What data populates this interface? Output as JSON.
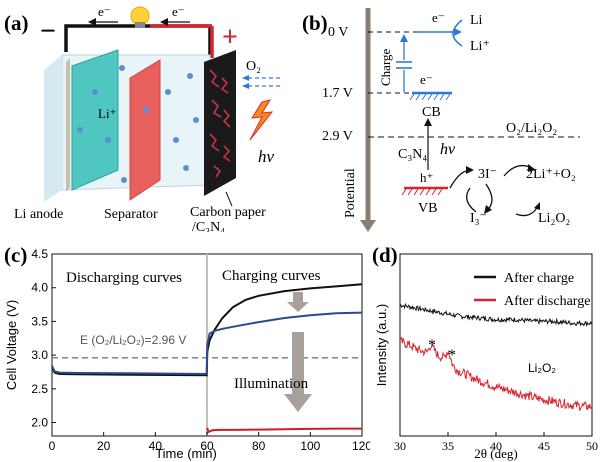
{
  "panels": {
    "a": {
      "label": "(a)",
      "electron_left": "e⁻",
      "electron_right": "e⁻",
      "minus": "−",
      "plus": "+",
      "o2": "O₂",
      "li_ion": "Li⁺",
      "hv": "hν",
      "li_anode": "Li anode",
      "separator": "Separator",
      "carbon_paper_line1": "Carbon paper",
      "carbon_paper_line2": "/C₃N₄"
    },
    "b": {
      "label": "(b)",
      "level_0": "0 V",
      "level_17": "1.7 V",
      "level_29": "2.9 V",
      "electron_top": "e⁻",
      "li": "Li",
      "li_plus": "Li⁺",
      "charge": "Charge",
      "electron_cb": "e⁻",
      "cb": "CB",
      "o2_li2o2": "O₂/Li₂O₂",
      "c3n4": "C₃N₄",
      "hv": "hν",
      "hplus": "h⁺",
      "vb": "VB",
      "three_i": "3I⁻",
      "i3": "I₃⁻",
      "two_li": "2Li⁺+O₂",
      "li2o2": "Li₂O₂",
      "potential": "Potential"
    },
    "c": {
      "label": "(c)",
      "discharging": "Discharging curves",
      "charging": "Charging curves",
      "ref_label": "E (O₂/Li₂O₂)=2.96 V",
      "illumination": "Illumination"
    },
    "d": {
      "label": "(d)",
      "peak_label": "Li₂O₂",
      "star": "*"
    }
  },
  "chart_data": [
    {
      "type": "line",
      "xlabel": "Time (min)",
      "ylabel": "Cell Voltage (V)",
      "xlim": [
        0,
        120
      ],
      "ylim": [
        1.8,
        4.5
      ],
      "xticks": [
        0,
        20,
        40,
        60,
        80,
        100,
        120
      ],
      "yticks": [
        2.0,
        2.5,
        3.0,
        3.5,
        4.0,
        4.5
      ],
      "reference_line": 2.96,
      "series": [
        {
          "color": "#111111",
          "x": [
            0,
            1,
            3,
            10,
            30,
            59.9,
            60.1,
            61,
            63,
            66,
            70,
            75,
            80,
            90,
            100,
            110,
            120
          ],
          "y": [
            2.82,
            2.74,
            2.72,
            2.715,
            2.71,
            2.7,
            3.05,
            3.22,
            3.38,
            3.55,
            3.71,
            3.82,
            3.88,
            3.95,
            3.99,
            4.02,
            4.05
          ]
        },
        {
          "color": "#2e4a8f",
          "x": [
            0,
            1,
            3,
            10,
            30,
            59.9,
            60.1,
            61,
            63,
            66,
            70,
            80,
            90,
            100,
            110,
            120
          ],
          "y": [
            2.84,
            2.76,
            2.74,
            2.735,
            2.73,
            2.72,
            3.15,
            3.32,
            3.36,
            3.39,
            3.42,
            3.49,
            3.55,
            3.59,
            3.62,
            3.63
          ]
        },
        {
          "color": "#c81e2c",
          "x": [
            60.1,
            60.5,
            62,
            65,
            70,
            80,
            90,
            100,
            110,
            120
          ],
          "y": [
            1.92,
            1.86,
            1.885,
            1.89,
            1.89,
            1.895,
            1.9,
            1.905,
            1.91,
            1.91
          ]
        }
      ]
    },
    {
      "type": "line",
      "xlabel": "2θ (deg)",
      "ylabel": "Intensity (a.u.)",
      "xlim": [
        30,
        50
      ],
      "xticks": [
        30,
        35,
        40,
        45,
        50
      ],
      "legend": "top-right",
      "series": [
        {
          "name": "After charge",
          "color": "#111111",
          "x": [
            30,
            32,
            34,
            36,
            38,
            40,
            42,
            44,
            46,
            48,
            50
          ],
          "y": [
            0.72,
            0.7,
            0.68,
            0.66,
            0.65,
            0.64,
            0.64,
            0.63,
            0.63,
            0.62,
            0.62
          ]
        },
        {
          "name": "After discharge",
          "color": "#d9232e",
          "x": [
            30,
            31,
            32,
            32.8,
            33.2,
            34,
            34.6,
            35,
            35.5,
            36,
            38,
            40,
            42,
            44,
            46,
            48,
            50
          ],
          "y": [
            0.52,
            0.5,
            0.47,
            0.46,
            0.5,
            0.44,
            0.43,
            0.47,
            0.39,
            0.36,
            0.31,
            0.27,
            0.24,
            0.21,
            0.19,
            0.17,
            0.16
          ]
        }
      ]
    }
  ]
}
